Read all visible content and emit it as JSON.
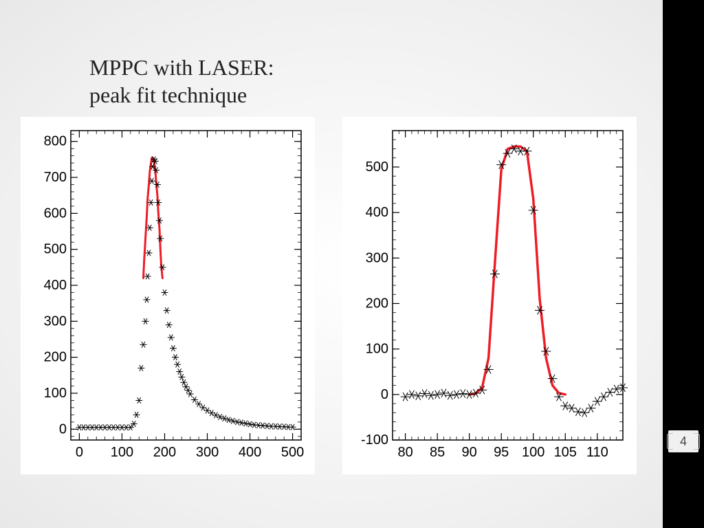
{
  "slide": {
    "title_line1": "MPPC with LASER:",
    "title_line2": "peak fit technique",
    "page_number": "4"
  },
  "colors": {
    "background": "#ffffff",
    "axis": "#000000",
    "marker": "#000000",
    "fit_line": "#ee1c25",
    "black_bar": "#000000"
  },
  "typography": {
    "title_fontfamily": "Georgia, serif",
    "title_fontsize_pt": 24,
    "axis_label_fontsize_pt": 15,
    "axis_label_fontfamily": "Arial, sans-serif"
  },
  "chart_left": {
    "type": "scatter+line",
    "marker_style": "asterisk",
    "marker_size": 5,
    "fit_line_width": 3,
    "xlim": [
      -20,
      520
    ],
    "ylim": [
      -30,
      830
    ],
    "xticks": [
      0,
      100,
      200,
      300,
      400,
      500
    ],
    "yticks": [
      0,
      100,
      200,
      300,
      400,
      500,
      600,
      700,
      800
    ],
    "x_minor_step": 20,
    "y_minor_step": 20,
    "grid": false,
    "data_x": [
      0,
      10,
      20,
      30,
      40,
      50,
      60,
      70,
      80,
      90,
      100,
      110,
      120,
      128,
      134,
      140,
      145,
      150,
      155,
      158,
      160,
      163,
      165,
      168,
      170,
      172,
      175,
      178,
      180,
      183,
      185,
      188,
      190,
      195,
      200,
      205,
      210,
      215,
      220,
      225,
      230,
      235,
      240,
      245,
      250,
      255,
      260,
      270,
      280,
      290,
      300,
      310,
      320,
      330,
      340,
      350,
      360,
      370,
      380,
      390,
      400,
      410,
      420,
      430,
      440,
      450,
      460,
      470,
      480,
      490,
      500
    ],
    "data_y": [
      5,
      5,
      5,
      5,
      5,
      5,
      5,
      5,
      5,
      5,
      5,
      5,
      5,
      15,
      40,
      80,
      170,
      235,
      300,
      360,
      425,
      490,
      560,
      630,
      690,
      730,
      750,
      745,
      720,
      680,
      630,
      580,
      530,
      450,
      380,
      330,
      290,
      255,
      225,
      200,
      180,
      160,
      145,
      130,
      118,
      108,
      98,
      82,
      70,
      60,
      52,
      45,
      39,
      34,
      30,
      26,
      23,
      20,
      18,
      16,
      14,
      12,
      11,
      10,
      9,
      8,
      8,
      7,
      7,
      6,
      6
    ],
    "fit_x": [
      150,
      152,
      155,
      158,
      160,
      163,
      165,
      168,
      170,
      172,
      175,
      178,
      180,
      183,
      185,
      188,
      190,
      192,
      195
    ],
    "fit_y": [
      420,
      470,
      530,
      590,
      640,
      680,
      715,
      740,
      755,
      755,
      745,
      720,
      690,
      650,
      605,
      555,
      500,
      455,
      420
    ]
  },
  "chart_right": {
    "type": "scatter+line",
    "marker_style": "asterisk",
    "marker_size": 7,
    "fit_line_width": 3.5,
    "xlim": [
      78,
      114
    ],
    "ylim": [
      -100,
      580
    ],
    "xticks": [
      80,
      85,
      90,
      95,
      100,
      105,
      110
    ],
    "yticks": [
      -100,
      0,
      100,
      200,
      300,
      400,
      500
    ],
    "x_minor_step": 1,
    "y_minor_step": 20,
    "grid": false,
    "data_x": [
      80,
      81,
      82,
      83,
      84,
      85,
      86,
      87,
      88,
      89,
      90,
      91,
      92,
      93,
      94,
      95,
      96,
      97,
      98,
      99,
      100,
      101,
      102,
      103,
      104,
      105,
      106,
      107,
      108,
      109,
      110,
      111,
      112,
      113,
      114
    ],
    "data_y": [
      -5,
      0,
      -3,
      2,
      -2,
      0,
      3,
      -2,
      0,
      2,
      0,
      3,
      10,
      55,
      265,
      505,
      530,
      540,
      535,
      535,
      405,
      185,
      95,
      35,
      -5,
      -25,
      -30,
      -38,
      -40,
      -30,
      -15,
      -5,
      5,
      12,
      15
    ],
    "fit_x": [
      90,
      91,
      92,
      93,
      94,
      95,
      96,
      97,
      98,
      99,
      100,
      101,
      102,
      103,
      104,
      105
    ],
    "fit_y": [
      0,
      2,
      15,
      80,
      290,
      495,
      540,
      545,
      545,
      535,
      430,
      210,
      80,
      20,
      3,
      0
    ]
  }
}
